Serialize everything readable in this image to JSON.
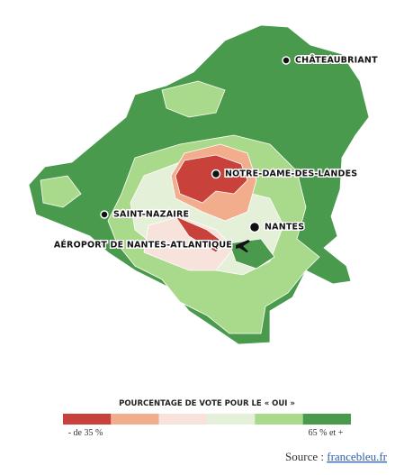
{
  "map": {
    "places": [
      {
        "label": "CHÂTEAUBRIANT"
      },
      {
        "label": "NOTRE-DAME-DES-LANDES"
      },
      {
        "label": "SAINT-NAZAIRE"
      },
      {
        "label": "NANTES"
      },
      {
        "label": "AÉROPORT DE NANTES-ATLANTIQUE"
      }
    ]
  },
  "legend": {
    "title": "POURCENTAGE DE VOTE POUR LE « OUI »",
    "colors": [
      "#c8413a",
      "#f1ad8c",
      "#f8e2dc",
      "#e5f0d8",
      "#a9d98a",
      "#4a9a4e"
    ],
    "min_label": "- de 35 %",
    "max_label": "65 % et +"
  },
  "source": {
    "prefix": "Source :",
    "link": "francebleu.fr"
  }
}
